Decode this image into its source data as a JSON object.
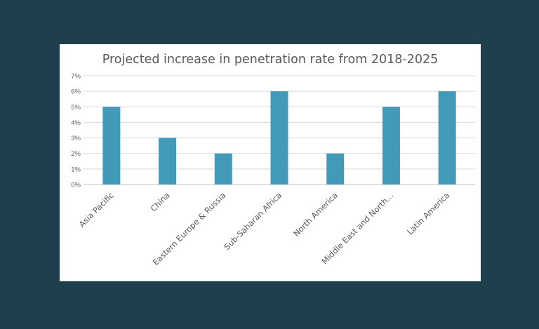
{
  "colors": {
    "background": "#1e3f4b",
    "card": "#ffffff",
    "bar": "#4399b8",
    "text": "#595959",
    "grid": "#d9d9d9"
  },
  "chart_data": {
    "type": "bar",
    "title": "Projected increase in penetration rate from 2018-2025",
    "categories": [
      "Asia Pacific",
      "China",
      "Eastern Europe & Russia",
      "Sub-Saharan Africa",
      "North America",
      "Middle East and North…",
      "Latin America"
    ],
    "values": [
      5,
      3,
      2,
      6,
      2,
      5,
      6
    ],
    "value_unit": "%",
    "ylim": [
      0,
      7
    ],
    "yticks": [
      "0%",
      "1%",
      "2%",
      "3%",
      "4%",
      "5%",
      "6%",
      "7%"
    ],
    "xlabel": "",
    "ylabel": "",
    "grid": true,
    "legend": "none"
  }
}
